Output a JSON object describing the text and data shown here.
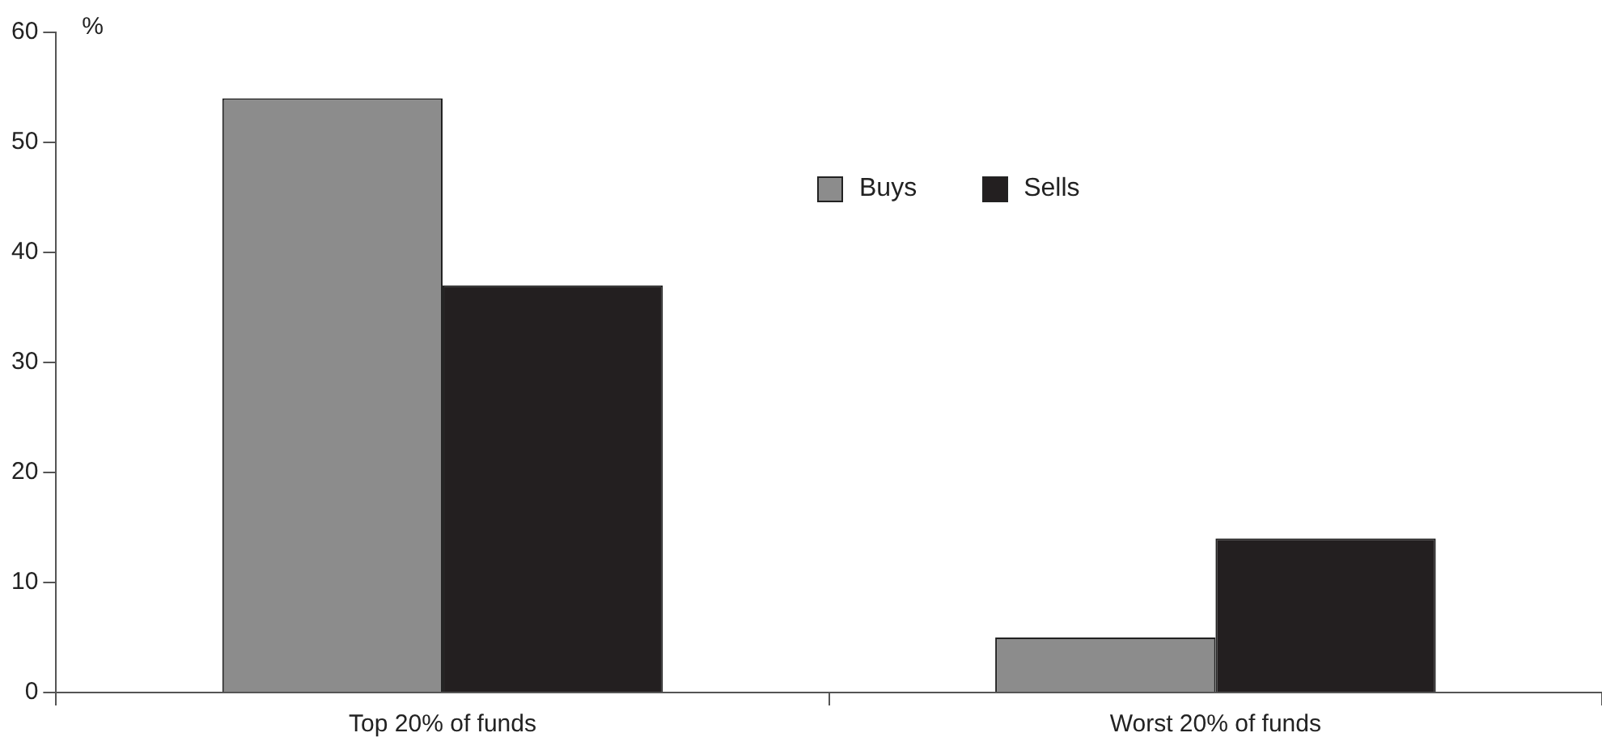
{
  "chart_data": {
    "type": "bar",
    "ylabel": "%",
    "categories": [
      "Top 20% of funds",
      "Worst 20% of funds"
    ],
    "series": [
      {
        "name": "Buys",
        "color": "#8c8c8c",
        "values": [
          54,
          5
        ]
      },
      {
        "name": "Sells",
        "color": "#231f20",
        "values": [
          37,
          14
        ]
      }
    ],
    "ylim": [
      0,
      60
    ],
    "yticks": [
      0,
      10,
      20,
      30,
      40,
      50,
      60
    ],
    "grid": false,
    "legend": "top right"
  }
}
